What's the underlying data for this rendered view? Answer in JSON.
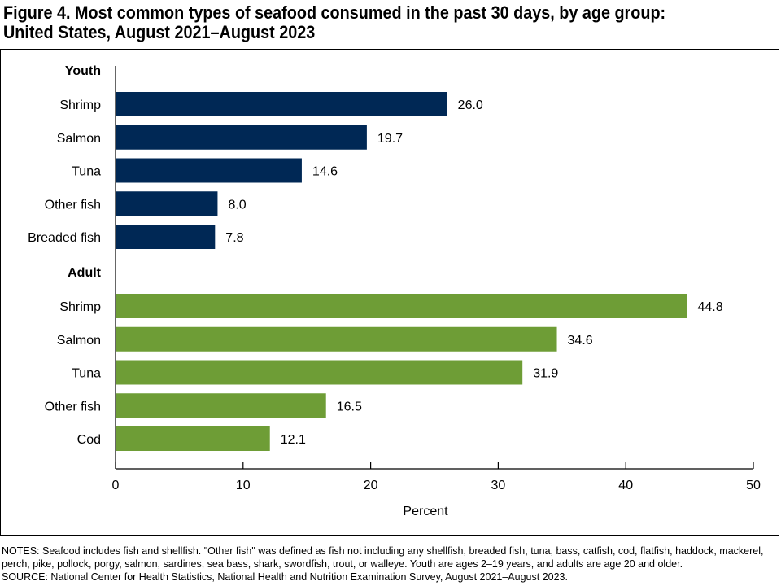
{
  "chart_data": {
    "type": "bar",
    "orientation": "horizontal",
    "title": "Figure 4. Most common types of seafood consumed in the past 30 days, by age group:",
    "subtitle": "United States, August 2021–August 2023",
    "xlabel": "Percent",
    "xlim": [
      0,
      50
    ],
    "xticks": [
      "0",
      "10",
      "20",
      "30",
      "40",
      "50"
    ],
    "grid": false,
    "groups": [
      {
        "name": "Youth",
        "color": "#002855",
        "categories": [
          "Shrimp",
          "Salmon",
          "Tuna",
          "Other fish",
          "Breaded fish"
        ],
        "values": [
          26.0,
          19.7,
          14.6,
          8.0,
          7.8
        ],
        "labels": [
          "26.0",
          "19.7",
          "14.6",
          "8.0",
          "7.8"
        ]
      },
      {
        "name": "Adult",
        "color": "#6e9d36",
        "categories": [
          "Shrimp",
          "Salmon",
          "Tuna",
          "Other fish",
          "Cod"
        ],
        "values": [
          44.8,
          34.6,
          31.9,
          16.5,
          12.1
        ],
        "labels": [
          "44.8",
          "34.6",
          "31.9",
          "16.5",
          "12.1"
        ]
      }
    ]
  },
  "notes": {
    "line1": "NOTES: Seafood includes fish and shellfish. \"Other fish\" was defined as fish not including any shellfish, breaded fish, tuna, bass, catfish, cod, flatfish, haddock, mackerel, perch, pike, pollock, porgy, salmon, sardines, sea bass, shark, swordfish, trout, or walleye. Youth are ages 2–19 years, and adults are age 20 and older.",
    "source": "SOURCE: National Center for Health Statistics, National Health and Nutrition Examination Survey, August 2021–August 2023."
  }
}
